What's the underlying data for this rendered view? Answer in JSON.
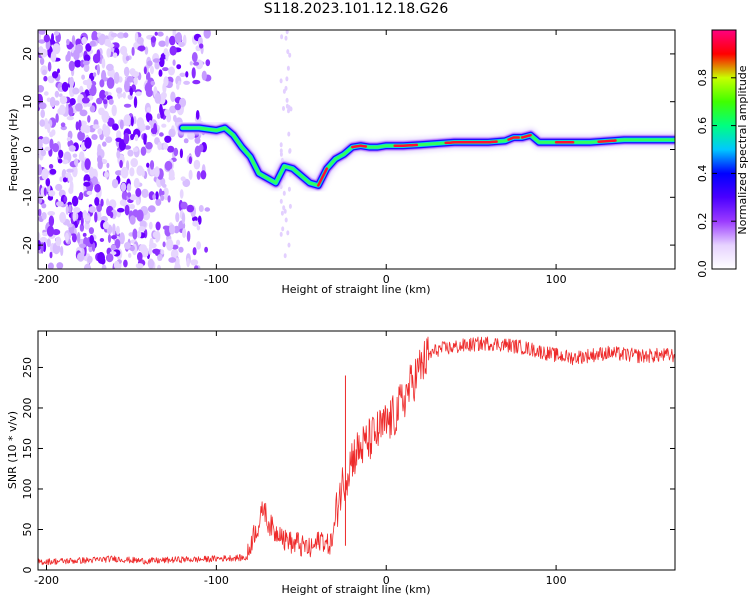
{
  "title": "S118.2023.101.12.18.G26",
  "chart_data": [
    {
      "type": "heatmap",
      "xlabel": "Height of straight line (km)",
      "ylabel": "Frequency (Hz)",
      "xlim": [
        -205,
        170
      ],
      "ylim": [
        -25,
        25
      ],
      "x_ticks": [
        -200,
        -100,
        0,
        100
      ],
      "y_ticks": [
        -20,
        -10,
        0,
        10,
        20
      ],
      "grid": false,
      "colorbar": {
        "label": "Normalized spectral amplitude",
        "range": [
          0,
          1
        ],
        "ticks": [
          0.0,
          0.2,
          0.4,
          0.6,
          0.8
        ],
        "colormap": [
          "#ffffff",
          "#e6d2ff",
          "#9b3bff",
          "#4a00ff",
          "#0000ff",
          "#00c8ff",
          "#00ff80",
          "#40ff00",
          "#c8ff00",
          "#ff0000",
          "#ff0080"
        ]
      },
      "ridge": {
        "name": "",
        "x": [
          -120,
          -110,
          -100,
          -95,
          -90,
          -85,
          -80,
          -75,
          -70,
          -65,
          -60,
          -55,
          -50,
          -45,
          -40,
          -35,
          -30,
          -25,
          -20,
          -15,
          -10,
          -5,
          0,
          10,
          20,
          40,
          60,
          70,
          75,
          80,
          85,
          90,
          100,
          110,
          120,
          140,
          160,
          170
        ],
        "y": [
          4.5,
          4.5,
          4.0,
          4.5,
          3.0,
          0.5,
          -1.5,
          -5.0,
          -6.0,
          -7.0,
          -3.5,
          -4.0,
          -5.5,
          -7.0,
          -7.5,
          -4.0,
          -2.0,
          -1.0,
          0.5,
          0.8,
          0.5,
          0.5,
          0.8,
          0.8,
          1.0,
          1.5,
          1.5,
          1.8,
          2.5,
          2.5,
          3.0,
          1.5,
          1.5,
          1.5,
          1.5,
          2.0,
          2.0,
          2.0
        ]
      }
    },
    {
      "type": "line",
      "xlabel": "Height of straight line (km)",
      "ylabel": "SNR (10 * v/v)",
      "xlim": [
        -205,
        170
      ],
      "ylim": [
        0,
        295
      ],
      "x_ticks": [
        -200,
        -100,
        0,
        100
      ],
      "y_ticks": [
        0,
        50,
        100,
        150,
        200,
        250
      ],
      "grid": false,
      "series": [
        {
          "color": "#ee2a2a",
          "x": [
            -205,
            -190,
            -175,
            -160,
            -150,
            -140,
            -130,
            -120,
            -110,
            -100,
            -90,
            -82,
            -80,
            -78,
            -75,
            -72,
            -70,
            -68,
            -65,
            -62,
            -60,
            -58,
            -55,
            -52,
            -50,
            -48,
            -45,
            -42,
            -40,
            -38,
            -35,
            -32,
            -30,
            -28,
            -25,
            -23,
            -20,
            -15,
            -10,
            -5,
            0,
            5,
            10,
            15,
            20,
            25,
            30,
            40,
            50,
            60,
            70,
            80,
            90,
            100,
            110,
            120,
            130,
            140,
            150,
            160,
            170
          ],
          "y": [
            10,
            11,
            12,
            14,
            12,
            11,
            12,
            13,
            13,
            14,
            15,
            15,
            30,
            45,
            55,
            80,
            60,
            55,
            45,
            50,
            35,
            40,
            30,
            35,
            28,
            30,
            25,
            30,
            35,
            40,
            30,
            35,
            60,
            90,
            110,
            120,
            140,
            150,
            160,
            170,
            180,
            190,
            210,
            230,
            250,
            265,
            272,
            275,
            278,
            280,
            278,
            275,
            270,
            265,
            262,
            265,
            268,
            266,
            264,
            265,
            265
          ]
        }
      ]
    }
  ]
}
